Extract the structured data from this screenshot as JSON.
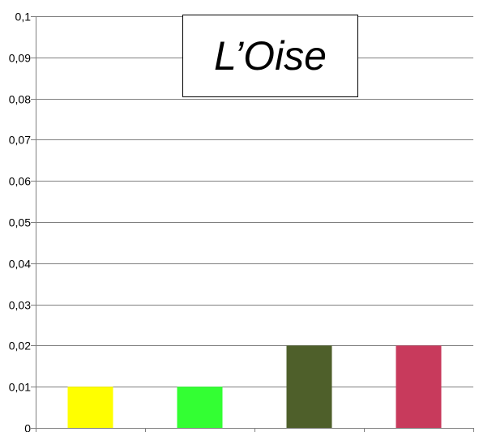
{
  "chart_data": {
    "type": "bar",
    "title": "L’Oise",
    "xlabel": "",
    "ylabel": "",
    "categories": [
      "",
      "",
      "",
      ""
    ],
    "values": [
      0.01,
      0.01,
      0.02,
      0.02
    ],
    "bar_colors": [
      "#ffff00",
      "#33ff33",
      "#4e5f2a",
      "#c83a5c"
    ],
    "ylim": [
      0,
      0.1
    ],
    "y_ticks": [
      0,
      0.01,
      0.02,
      0.03,
      0.04,
      0.05,
      0.06,
      0.07,
      0.08,
      0.09,
      0.1
    ],
    "y_tick_labels": [
      "0",
      "0,01",
      "0,02",
      "0,03",
      "0,04",
      "0,05",
      "0,06",
      "0,07",
      "0,08",
      "0,09",
      "0,1"
    ],
    "grid": true,
    "legend": "none"
  },
  "colors": {
    "gridline": "#7f7f7f",
    "axis": "#7f7f7f",
    "text": "#000000"
  }
}
